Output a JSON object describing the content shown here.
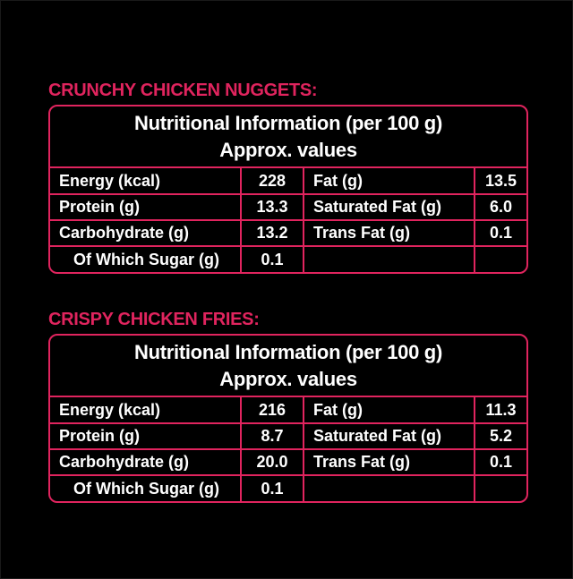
{
  "sections": [
    {
      "title": "CRUNCHY CHICKEN NUGGETS:",
      "header_line1": "Nutritional Information (per 100 g)",
      "header_line2": "Approx. values",
      "rows": [
        {
          "left_label": "Energy (kcal)",
          "left_value": "228",
          "right_label": "Fat (g)",
          "right_value": "13.5"
        },
        {
          "left_label": "Protein (g)",
          "left_value": "13.3",
          "right_label": "Saturated Fat (g)",
          "right_value": "6.0"
        },
        {
          "left_label": "Carbohydrate (g)",
          "left_value": "13.2",
          "right_label": "Trans Fat (g)",
          "right_value": "0.1"
        },
        {
          "left_label": "Of Which Sugar (g)",
          "left_value": "0.1",
          "right_label": "",
          "right_value": ""
        }
      ]
    },
    {
      "title": "CRISPY CHICKEN FRIES:",
      "header_line1": "Nutritional Information (per 100 g)",
      "header_line2": "Approx. values",
      "rows": [
        {
          "left_label": "Energy (kcal)",
          "left_value": "216",
          "right_label": "Fat (g)",
          "right_value": "11.3"
        },
        {
          "left_label": "Protein (g)",
          "left_value": "8.7",
          "right_label": "Saturated Fat (g)",
          "right_value": "5.2"
        },
        {
          "left_label": "Carbohydrate (g)",
          "left_value": "20.0",
          "right_label": "Trans Fat (g)",
          "right_value": "0.1"
        },
        {
          "left_label": "Of Which Sugar (g)",
          "left_value": "0.1",
          "right_label": "",
          "right_value": ""
        }
      ]
    }
  ],
  "colors": {
    "accent": "#e0245e",
    "background": "#000000",
    "text": "#ffffff"
  }
}
